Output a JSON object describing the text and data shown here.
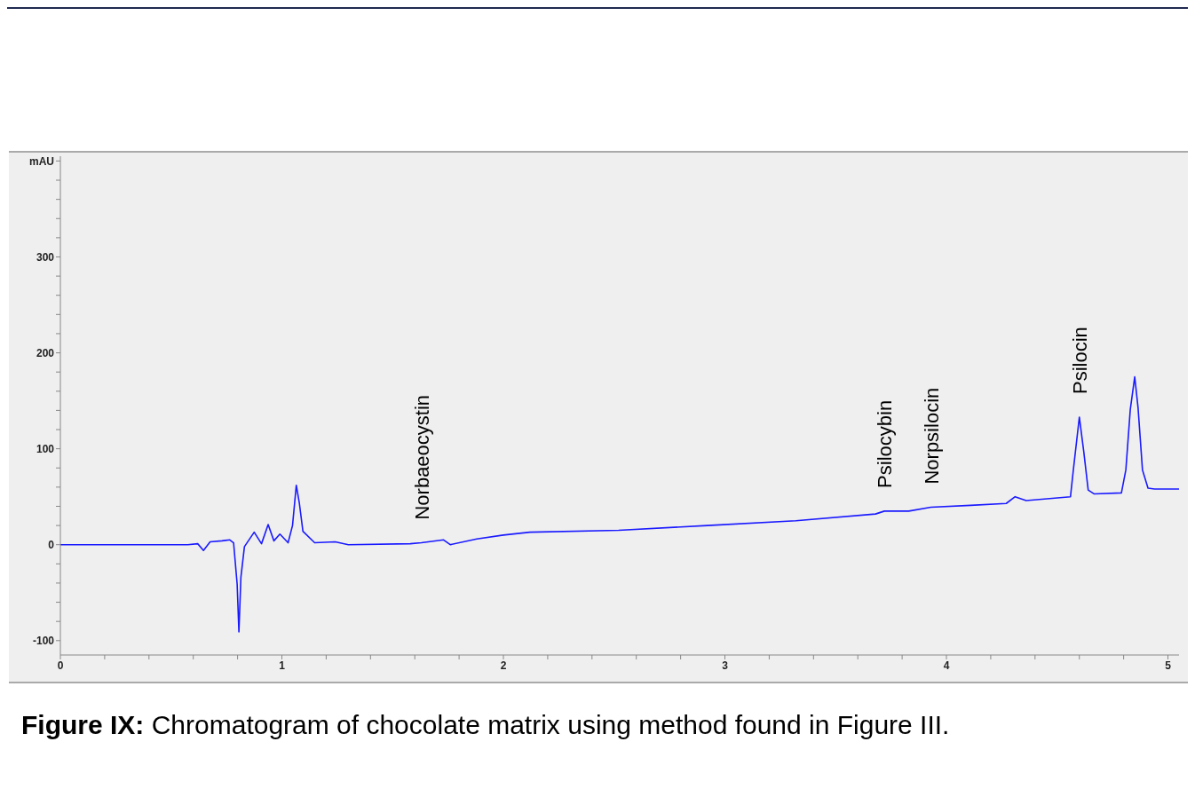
{
  "chart_data": {
    "type": "line",
    "x": [
      0,
      0.575,
      0.62,
      0.646,
      0.676,
      0.729,
      0.765,
      0.782,
      0.798,
      0.806,
      0.815,
      0.831,
      0.875,
      0.908,
      0.938,
      0.964,
      0.991,
      1.028,
      1.048,
      1.065,
      1.079,
      1.095,
      1.148,
      1.241,
      1.3,
      1.58,
      1.63,
      1.73,
      1.76,
      1.88,
      2.0,
      2.12,
      2.52,
      2.92,
      3.32,
      3.68,
      3.72,
      3.83,
      3.93,
      4.11,
      4.27,
      4.31,
      4.36,
      4.56,
      4.573,
      4.6,
      4.62,
      4.64,
      4.666,
      4.79,
      4.81,
      4.83,
      4.85,
      4.865,
      4.885,
      4.91,
      4.94,
      5.05
    ],
    "series": [
      {
        "color": "#1a1aff",
        "values": [
          0,
          0,
          1,
          -6,
          3,
          4,
          5,
          2,
          -41,
          -91,
          -34,
          -2,
          13,
          1,
          21,
          4,
          11,
          2,
          20,
          62,
          43,
          14,
          2,
          3,
          0,
          1,
          2,
          5,
          0,
          6,
          10,
          13,
          15,
          20,
          25,
          32,
          35,
          35,
          39,
          41,
          43,
          50,
          46,
          50,
          78,
          133,
          97,
          57,
          53,
          54,
          78,
          141,
          175,
          143,
          78,
          59,
          58,
          58
        ]
      }
    ],
    "xlim": [
      0,
      5.05
    ],
    "xticks": [
      0,
      {
        "value": 0.2,
        "label": null
      },
      {
        "value": 0.4,
        "label": null
      },
      {
        "value": 0.6,
        "label": null
      },
      {
        "value": 0.8,
        "label": null
      },
      1,
      {
        "value": 1.2,
        "label": null
      },
      {
        "value": 1.4,
        "label": null
      },
      {
        "value": 1.6,
        "label": null
      },
      {
        "value": 1.8,
        "label": null
      },
      2,
      {
        "value": 2.2,
        "label": null
      },
      {
        "value": 2.4,
        "label": null
      },
      {
        "value": 2.6,
        "label": null
      },
      {
        "value": 2.8,
        "label": null
      },
      3,
      {
        "value": 3.2,
        "label": null
      },
      {
        "value": 3.4,
        "label": null
      },
      {
        "value": 3.6,
        "label": null
      },
      {
        "value": 3.8,
        "label": null
      },
      4,
      {
        "value": 4.2,
        "label": null
      },
      {
        "value": 4.4,
        "label": null
      },
      {
        "value": 4.6,
        "label": null
      },
      {
        "value": 4.8,
        "label": null
      },
      5
    ],
    "ylim": [
      -115,
      405
    ],
    "yticks": [
      -100,
      {
        "value": -80,
        "label": null
      },
      {
        "value": -60,
        "label": null
      },
      {
        "value": -40,
        "label": null
      },
      {
        "value": -20,
        "label": null
      },
      0,
      {
        "value": 20,
        "label": null
      },
      {
        "value": 40,
        "label": null
      },
      {
        "value": 60,
        "label": null
      },
      {
        "value": 80,
        "label": null
      },
      100,
      {
        "value": 120,
        "label": null
      },
      {
        "value": 140,
        "label": null
      },
      {
        "value": 160,
        "label": null
      },
      {
        "value": 180,
        "label": null
      },
      200,
      {
        "value": 220,
        "label": null
      },
      {
        "value": 240,
        "label": null
      },
      {
        "value": 260,
        "label": null
      },
      {
        "value": 280,
        "label": null
      },
      300,
      {
        "value": 320,
        "label": null
      },
      {
        "value": 340,
        "label": null
      },
      {
        "value": 360,
        "label": null
      },
      {
        "value": 380,
        "label": null
      },
      {
        "value": 400,
        "label": "mAU"
      }
    ],
    "grid": false,
    "legend": false,
    "marker": "none",
    "line_style": "solid",
    "annotations": [
      {
        "text": "Norbaeocystin",
        "x": 1.63,
        "y": 2
      },
      {
        "text": "Psilocybin",
        "x": 3.72,
        "y": 35
      },
      {
        "text": "Norpsilocin",
        "x": 3.93,
        "y": 39
      },
      {
        "text": "Psilocin",
        "x": 4.6,
        "y": 133
      },
      "Figure IX: Chromatogram of chocolate matrix using method found in Figure III."
    ]
  }
}
